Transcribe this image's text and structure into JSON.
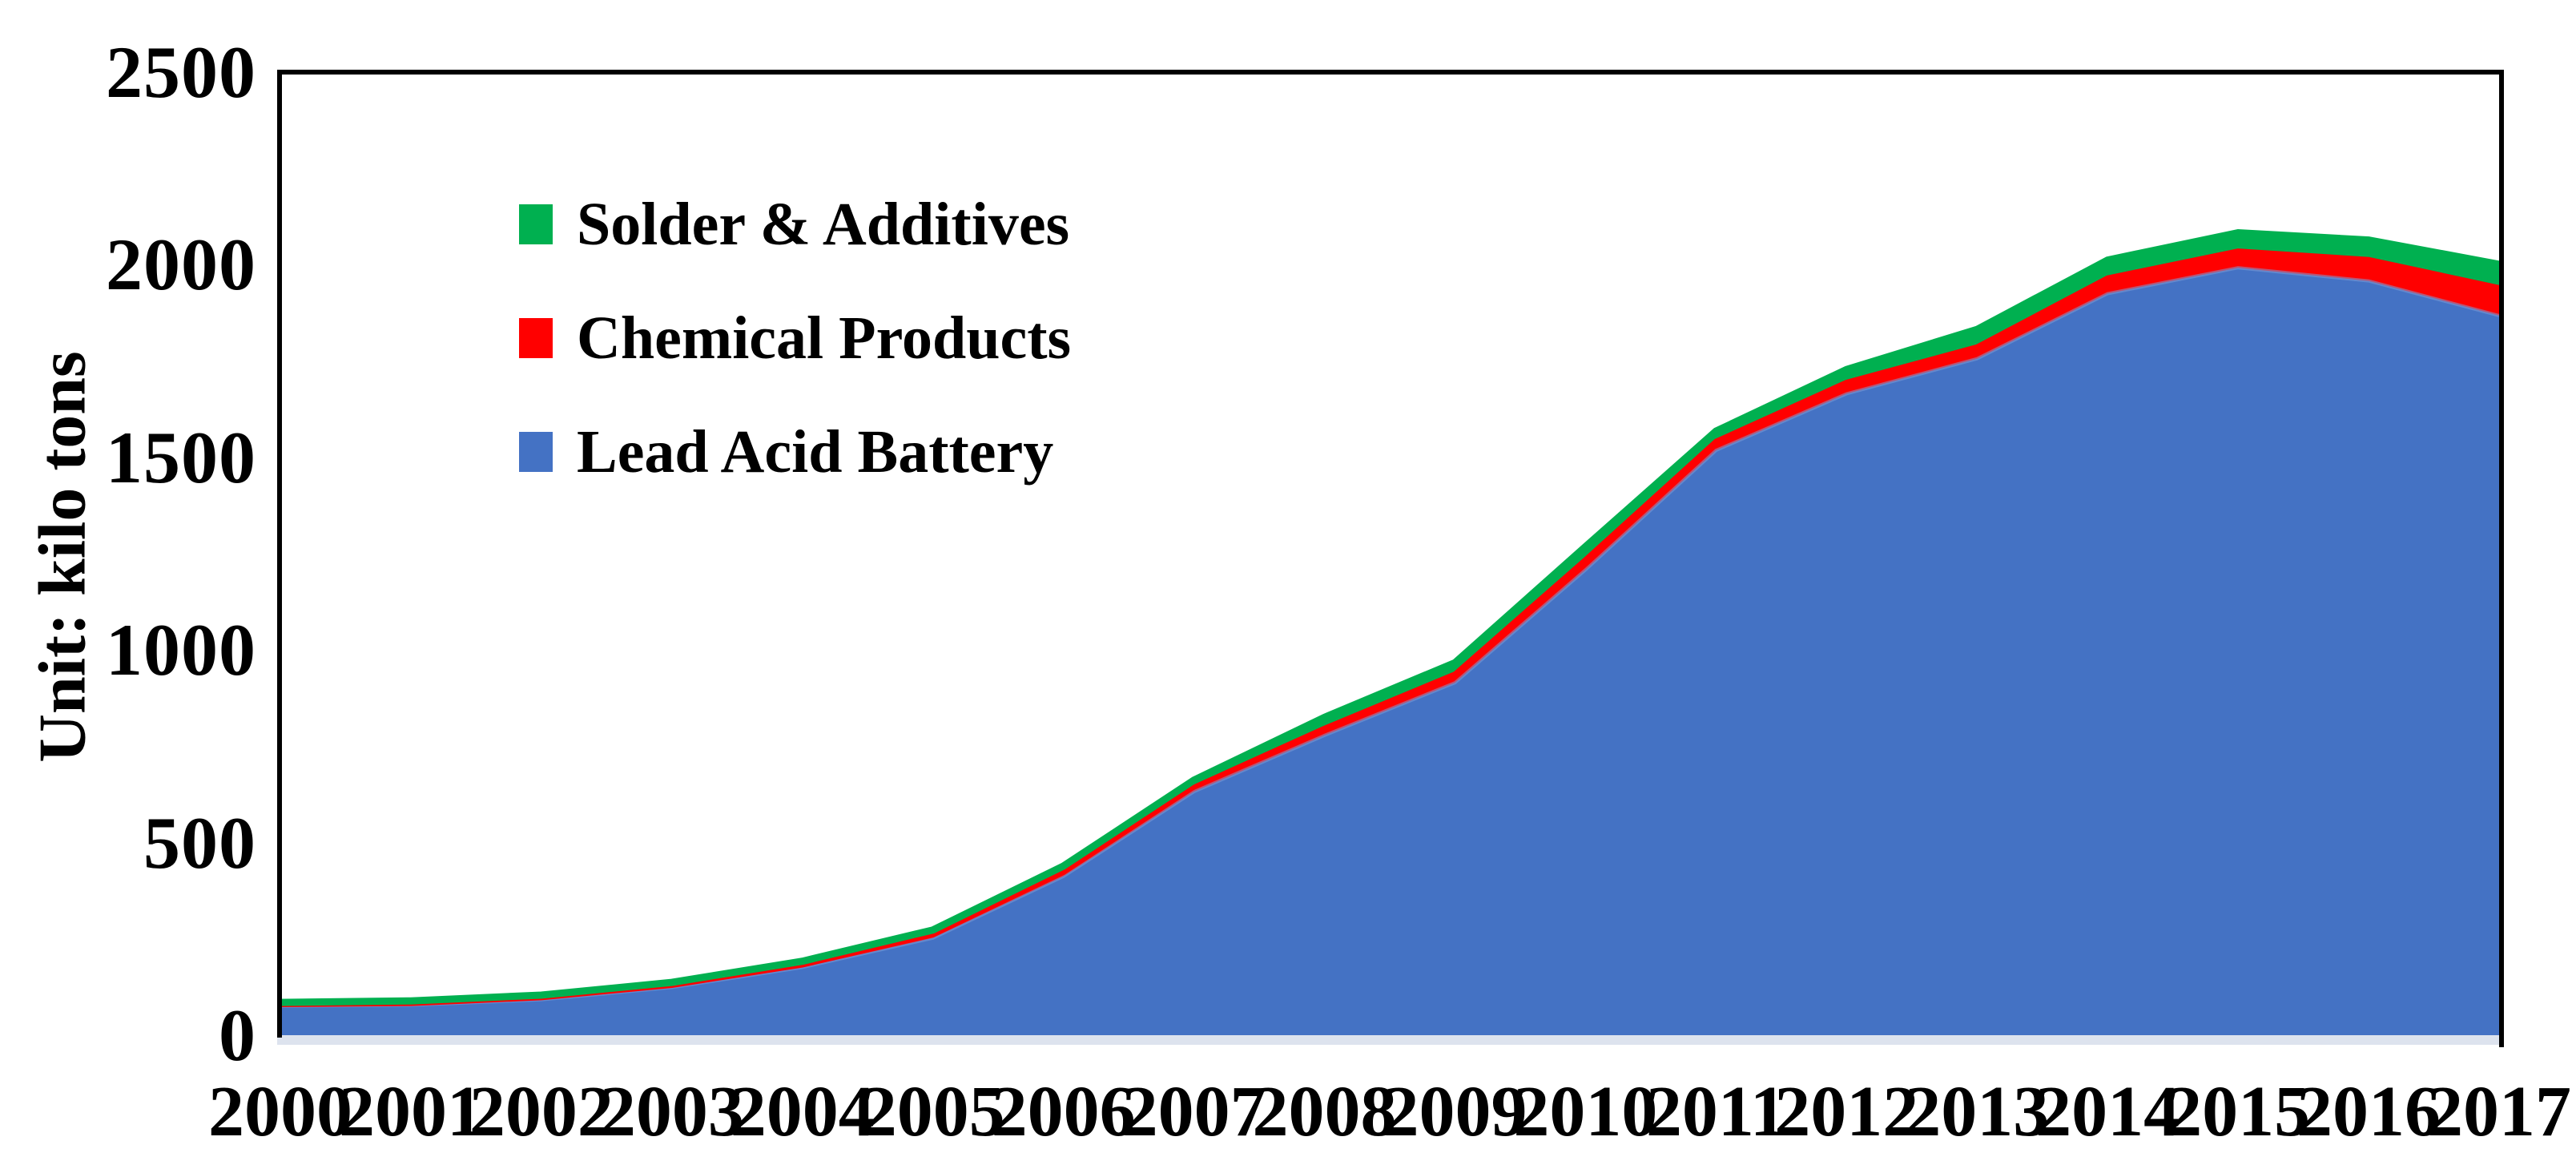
{
  "chart_data": {
    "type": "area",
    "stacked": true,
    "title": "",
    "ylabel": "Unit: kilo tons",
    "xlabel": "",
    "grid": false,
    "legend_position": "inside-top-left",
    "ylim": [
      0,
      2500
    ],
    "yticks": [
      0,
      500,
      1000,
      1500,
      2000,
      2500
    ],
    "ytick_labels": [
      "0",
      "500",
      "1000",
      "1500",
      "2000",
      "2500"
    ],
    "x_labels": [
      "2000",
      "2001",
      "2002",
      "2003",
      "2004",
      "2005",
      "2006",
      "2007",
      "2008",
      "2009",
      "2010",
      "2011",
      "2012",
      "2013",
      "2014",
      "2015",
      "2016",
      "2017"
    ],
    "series": [
      {
        "name": "Lead Acid Battery",
        "color": "#4472C4",
        "values": [
          75,
          78,
          92,
          124,
          176,
          252,
          412,
          632,
          778,
          915,
          1208,
          1518,
          1665,
          1756,
          1925,
          1992,
          1958,
          1868
        ]
      },
      {
        "name": "Chemical Products",
        "color": "#FF0000",
        "values": [
          4,
          4,
          5,
          5,
          6,
          8,
          10,
          12,
          19,
          23,
          27,
          24,
          30,
          31,
          41,
          44,
          56,
          73
        ]
      },
      {
        "name": "Solder & Additives",
        "color": "#00B050",
        "values": [
          6,
          7,
          7,
          8,
          10,
          13,
          17,
          18,
          28,
          29,
          33,
          26,
          33,
          45,
          46,
          47,
          50,
          60
        ]
      }
    ],
    "legend": [
      {
        "label": "Solder & Additives",
        "color": "#00B050"
      },
      {
        "label": "Chemical Products",
        "color": "#FF0000"
      },
      {
        "label": "Lead Acid Battery",
        "color": "#4472C4"
      }
    ],
    "axis_color": "#000000",
    "baseline_color": "#dde3ee"
  }
}
